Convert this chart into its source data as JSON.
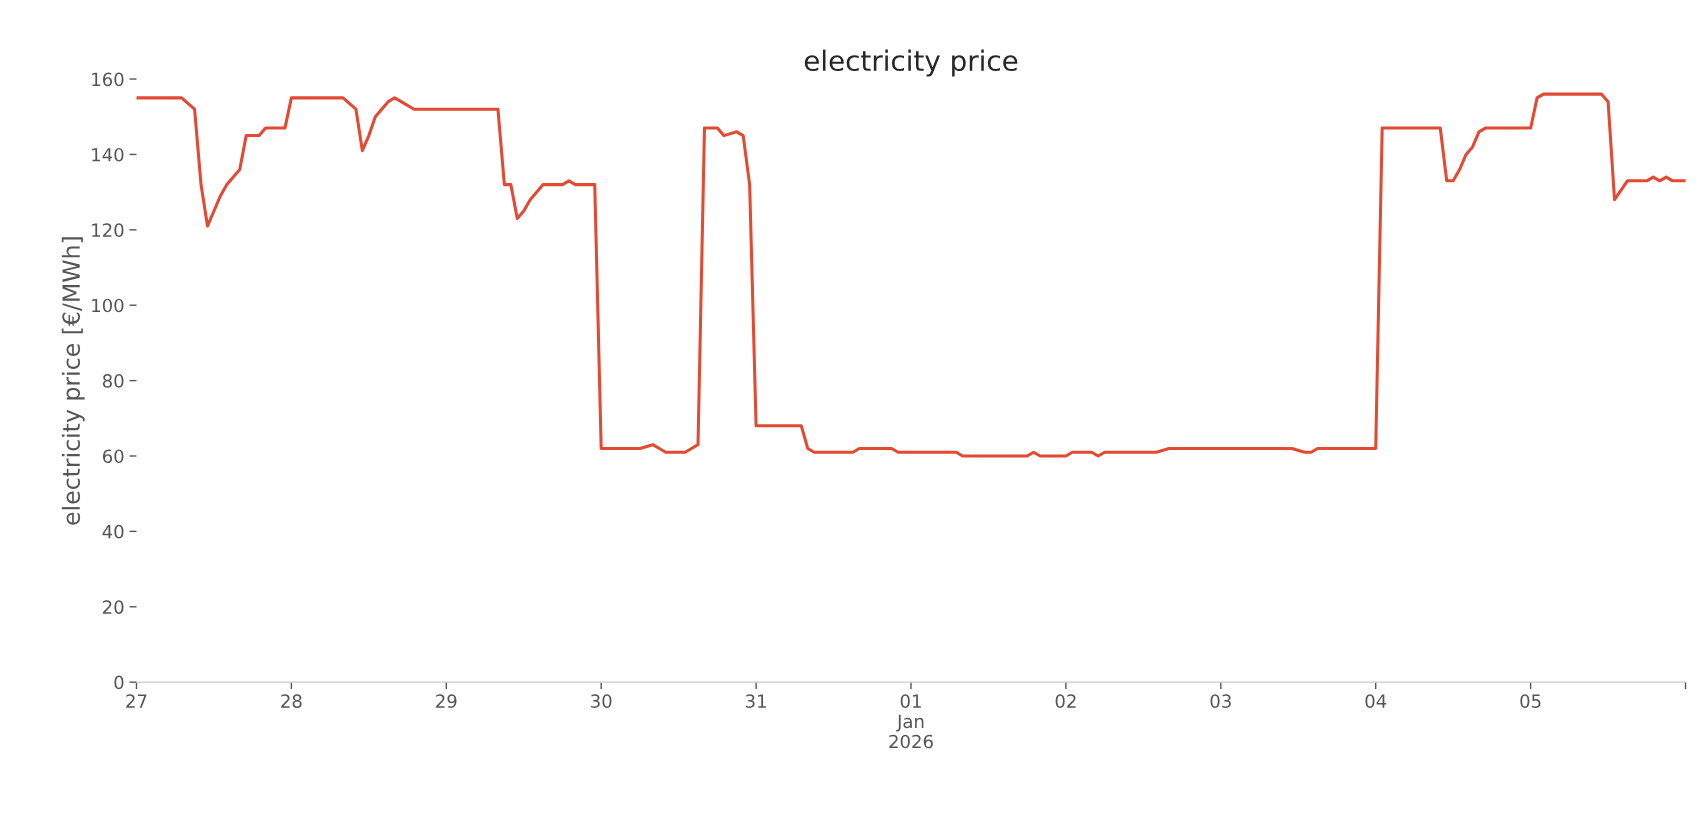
{
  "chart_data": {
    "type": "line",
    "title": "electricity price",
    "ylabel": "electricity price [€/MWh]",
    "xlim": [
      "2025-12-27",
      "2026-01-06"
    ],
    "ylim": [
      0,
      160
    ],
    "yticks": [
      0,
      20,
      40,
      60,
      80,
      100,
      120,
      140,
      160
    ],
    "xticks": [
      {
        "value": "2025-12-27",
        "label": "27"
      },
      {
        "value": "2025-12-28",
        "label": "28"
      },
      {
        "value": "2025-12-29",
        "label": "29"
      },
      {
        "value": "2025-12-30",
        "label": "30"
      },
      {
        "value": "2025-12-31",
        "label": "31"
      },
      {
        "value": "2026-01-01",
        "label": "01\nJan\n2026"
      },
      {
        "value": "2026-01-02",
        "label": "02"
      },
      {
        "value": "2026-01-03",
        "label": "03"
      },
      {
        "value": "2026-01-04",
        "label": "04"
      },
      {
        "value": "2026-01-05",
        "label": "05"
      },
      {
        "value": "2026-01-06",
        "label": null
      }
    ],
    "grid": false,
    "legend": false,
    "line_style": "solid",
    "marker": "none",
    "series": [
      {
        "color": "#e24a33",
        "x": [
          "2025-12-27T00:00",
          "2025-12-27T07:00",
          "2025-12-27T09:00",
          "2025-12-27T10:00",
          "2025-12-27T11:00",
          "2025-12-27T12:00",
          "2025-12-27T13:00",
          "2025-12-27T14:00",
          "2025-12-27T15:00",
          "2025-12-27T16:00",
          "2025-12-27T17:00",
          "2025-12-27T19:00",
          "2025-12-27T20:00",
          "2025-12-27T23:00",
          "2025-12-28T00:00",
          "2025-12-28T08:00",
          "2025-12-28T10:00",
          "2025-12-28T11:00",
          "2025-12-28T12:00",
          "2025-12-28T13:00",
          "2025-12-28T14:00",
          "2025-12-28T15:00",
          "2025-12-28T16:00",
          "2025-12-28T17:00",
          "2025-12-28T19:00",
          "2025-12-29T08:00",
          "2025-12-29T09:00",
          "2025-12-29T10:00",
          "2025-12-29T11:00",
          "2025-12-29T12:00",
          "2025-12-29T13:00",
          "2025-12-29T15:00",
          "2025-12-29T18:00",
          "2025-12-29T19:00",
          "2025-12-29T20:00",
          "2025-12-29T23:00",
          "2025-12-30T00:00",
          "2025-12-30T01:00",
          "2025-12-30T06:00",
          "2025-12-30T08:00",
          "2025-12-30T09:00",
          "2025-12-30T10:00",
          "2025-12-30T13:00",
          "2025-12-30T14:00",
          "2025-12-30T15:00",
          "2025-12-30T16:00",
          "2025-12-30T18:00",
          "2025-12-30T19:00",
          "2025-12-30T21:00",
          "2025-12-30T22:00",
          "2025-12-30T23:00",
          "2025-12-31T00:00",
          "2025-12-31T07:00",
          "2025-12-31T08:00",
          "2025-12-31T09:00",
          "2025-12-31T15:00",
          "2025-12-31T16:00",
          "2025-12-31T21:00",
          "2025-12-31T22:00",
          "2025-12-31T23:00",
          "2026-01-01T00:00",
          "2026-01-01T07:00",
          "2026-01-01T08:00",
          "2026-01-01T10:00",
          "2026-01-01T14:00",
          "2026-01-01T15:00",
          "2026-01-01T18:00",
          "2026-01-01T19:00",
          "2026-01-01T20:00",
          "2026-01-02T00:00",
          "2026-01-02T01:00",
          "2026-01-02T04:00",
          "2026-01-02T05:00",
          "2026-01-02T06:00",
          "2026-01-02T07:00",
          "2026-01-02T09:00",
          "2026-01-02T11:00",
          "2026-01-02T12:00",
          "2026-01-02T14:00",
          "2026-01-02T16:00",
          "2026-01-02T23:00",
          "2026-01-03T01:00",
          "2026-01-03T10:00",
          "2026-01-03T11:00",
          "2026-01-03T13:00",
          "2026-01-03T14:00",
          "2026-01-03T15:00",
          "2026-01-03T16:00",
          "2026-01-03T17:00",
          "2026-01-04T00:00",
          "2026-01-04T01:00",
          "2026-01-04T02:00",
          "2026-01-04T10:00",
          "2026-01-04T11:00",
          "2026-01-04T12:00",
          "2026-01-04T13:00",
          "2026-01-04T14:00",
          "2026-01-04T15:00",
          "2026-01-04T16:00",
          "2026-01-04T17:00",
          "2026-01-04T18:00",
          "2026-01-05T00:00",
          "2026-01-05T01:00",
          "2026-01-05T02:00",
          "2026-01-05T11:00",
          "2026-01-05T12:00",
          "2026-01-05T13:00",
          "2026-01-05T15:00",
          "2026-01-05T18:00",
          "2026-01-05T19:00",
          "2026-01-05T20:00",
          "2026-01-05T21:00",
          "2026-01-05T22:00",
          "2026-01-06T00:00"
        ],
        "values": [
          155,
          155,
          152,
          132,
          121,
          125,
          129,
          132,
          134,
          136,
          145,
          145,
          147,
          147,
          155,
          155,
          152,
          141,
          145,
          150,
          152,
          154,
          155,
          154,
          152,
          152,
          132,
          132,
          123,
          125,
          128,
          132,
          132,
          133,
          132,
          132,
          62,
          62,
          62,
          63,
          62,
          61,
          61,
          62,
          63,
          147,
          147,
          145,
          146,
          145,
          132,
          68,
          68,
          62,
          61,
          61,
          62,
          62,
          61,
          61,
          61,
          61,
          60,
          60,
          60,
          60,
          60,
          61,
          60,
          60,
          61,
          61,
          60,
          61,
          61,
          61,
          61,
          61,
          61,
          62,
          62,
          62,
          62,
          62,
          61,
          61,
          62,
          62,
          62,
          62,
          147,
          147,
          147,
          133,
          133,
          136,
          140,
          142,
          146,
          147,
          147,
          147,
          155,
          156,
          156,
          154,
          128,
          133,
          133,
          134,
          133,
          134,
          133,
          133
        ]
      }
    ]
  }
}
